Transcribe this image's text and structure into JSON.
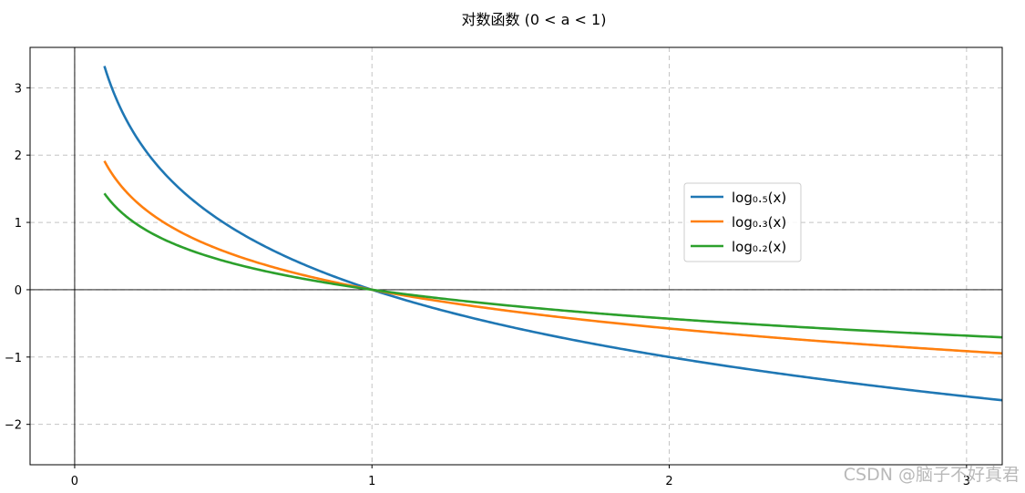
{
  "chart_data": {
    "type": "line",
    "title": "对数函数 (0 < a < 1)",
    "xlabel": "",
    "ylabel": "",
    "xlim": [
      -0.15,
      3.12
    ],
    "ylim": [
      -2.6,
      3.6
    ],
    "x_ticks": [
      0,
      1,
      2,
      3
    ],
    "y_ticks": [
      -2,
      -1,
      0,
      1,
      2,
      3
    ],
    "x_tick_labels": [
      "0",
      "1",
      "2",
      "3"
    ],
    "y_tick_labels": [
      "−2",
      "−1",
      "0",
      "1",
      "2",
      "3"
    ],
    "grid": true,
    "grid_style": "dashed",
    "axes_lines": {
      "x": 0,
      "y": 0
    },
    "legend_position": "center-right",
    "x_range": [
      0.1,
      3.12
    ],
    "series": [
      {
        "name": "log₀.₅(x)",
        "base": 0.5,
        "color": "#1f77b4",
        "x": [
          0.1,
          0.2,
          0.3,
          0.5,
          0.75,
          1,
          1.5,
          2,
          2.5,
          3,
          3.12
        ],
        "y": [
          3.32,
          2.32,
          1.74,
          1.0,
          0.42,
          0,
          -0.58,
          -1.0,
          -1.32,
          -1.58,
          -1.64
        ]
      },
      {
        "name": "log₀.₃(x)",
        "base": 0.3,
        "color": "#ff7f0e",
        "x": [
          0.1,
          0.2,
          0.3,
          0.5,
          0.75,
          1,
          1.5,
          2,
          2.5,
          3,
          3.12
        ],
        "y": [
          1.91,
          1.34,
          1.0,
          0.58,
          0.24,
          0,
          -0.34,
          -0.58,
          -0.76,
          -0.91,
          -0.95
        ]
      },
      {
        "name": "log₀.₂(x)",
        "base": 0.2,
        "color": "#2ca02c",
        "x": [
          0.1,
          0.2,
          0.3,
          0.5,
          0.75,
          1,
          1.5,
          2,
          2.5,
          3,
          3.12
        ],
        "y": [
          1.43,
          1.0,
          0.75,
          0.43,
          0.18,
          0,
          -0.25,
          -0.43,
          -0.57,
          -0.68,
          -0.71
        ]
      }
    ]
  },
  "watermark": "CSDN @脑子不好真君"
}
